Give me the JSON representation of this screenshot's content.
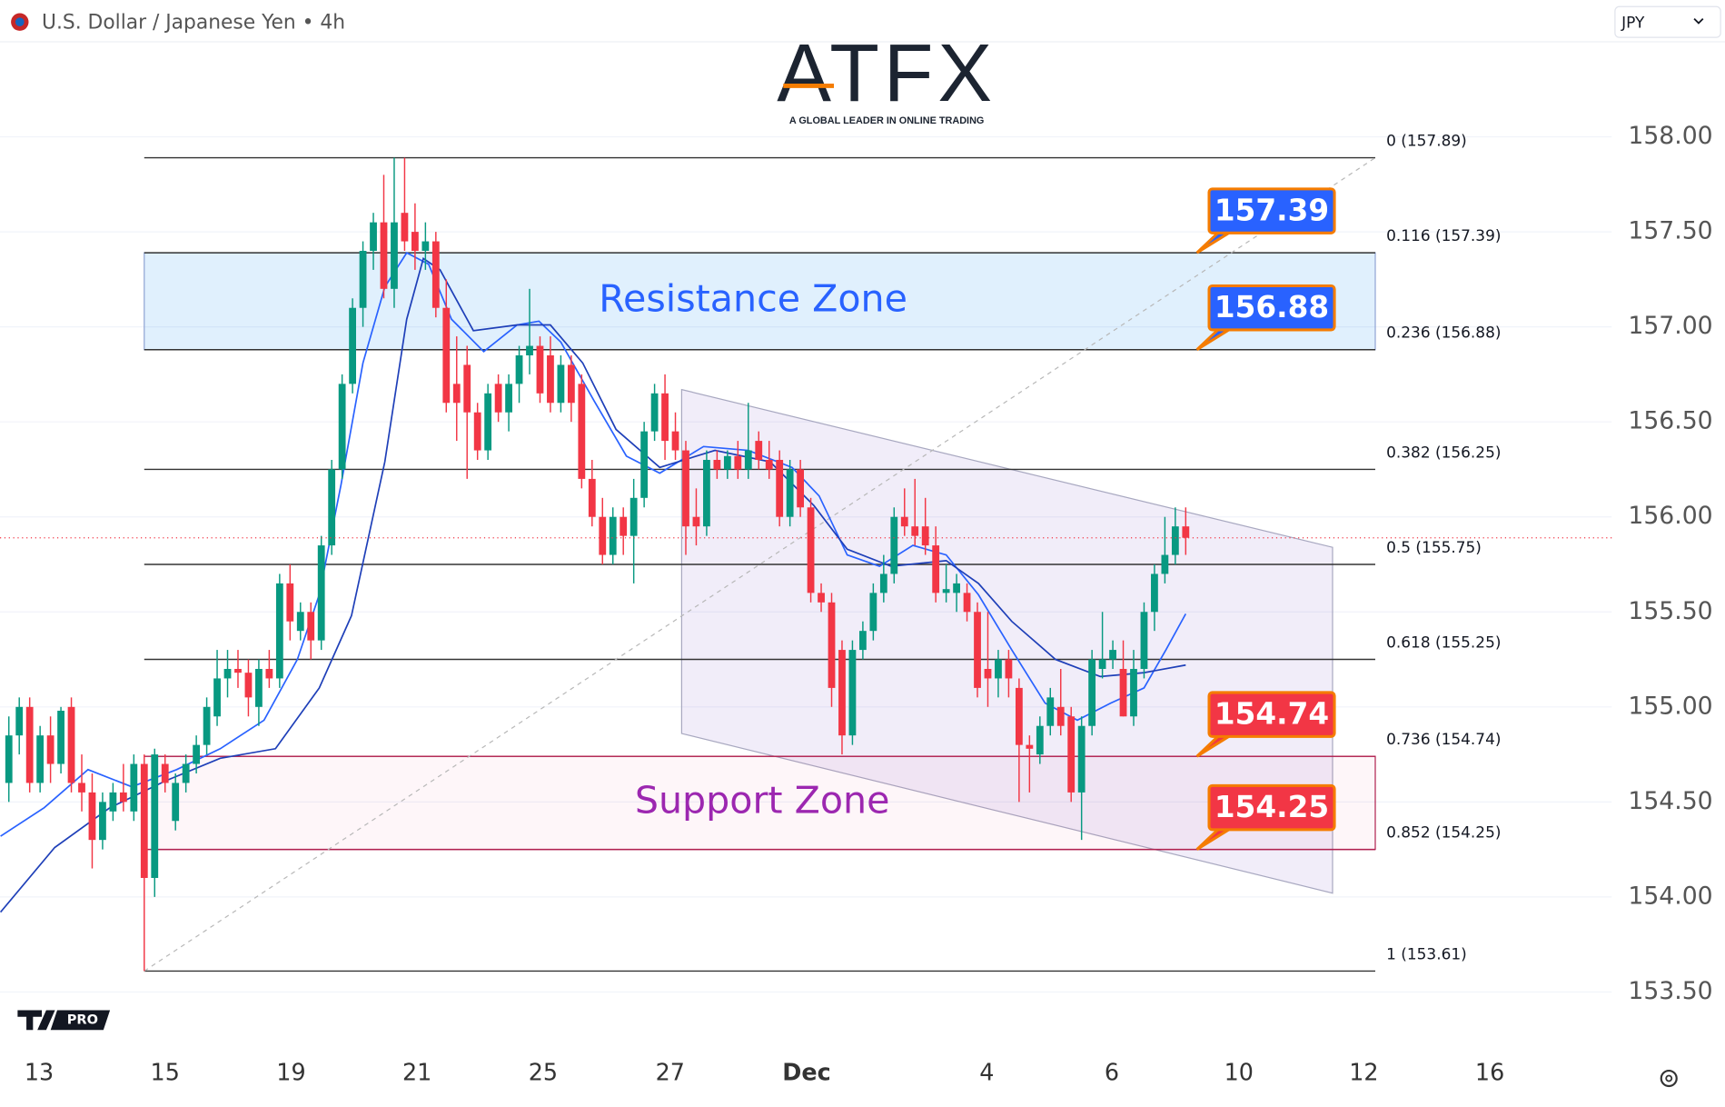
{
  "chart_data": {
    "type": "candlestick",
    "title": "U.S. Dollar / Japanese Yen • 4h",
    "currency": "JPY",
    "watermark": "ATFX",
    "watermark_tagline": "A GLOBAL LEADER IN ONLINE TRADING",
    "badge": "PRO",
    "up_color": "#089981",
    "down_color": "#f23645",
    "grid": true,
    "xlim": [
      -0.85,
      153.9
    ],
    "ylim": [
      153.19,
      158.5
    ],
    "yticks": [
      {
        "value": 153.5,
        "label": "153.50"
      },
      {
        "value": 154,
        "label": "154.00"
      },
      {
        "value": 154.5,
        "label": "154.50"
      },
      {
        "value": 155,
        "label": "155.00"
      },
      {
        "value": 155.5,
        "label": "155.50"
      },
      {
        "value": 156,
        "label": "156.00"
      },
      {
        "value": 156.5,
        "label": "156.50"
      },
      {
        "value": 157,
        "label": "157.00"
      },
      {
        "value": 157.5,
        "label": "157.50"
      },
      {
        "value": 158,
        "label": "158.00"
      }
    ],
    "xticks": [
      {
        "value": 2.9,
        "label": "13"
      },
      {
        "value": 15,
        "label": "15"
      },
      {
        "value": 27.1,
        "label": "19"
      },
      {
        "value": 39.2,
        "label": "21"
      },
      {
        "value": 51.3,
        "label": "25"
      },
      {
        "value": 63.5,
        "label": "27"
      },
      {
        "value": 76.6,
        "label": "Dec"
      },
      {
        "value": 93.9,
        "label": "4"
      },
      {
        "value": 105.9,
        "label": "6"
      },
      {
        "value": 118.1,
        "label": "10"
      },
      {
        "value": 130.1,
        "label": "12"
      },
      {
        "value": 142.2,
        "label": "16"
      }
    ],
    "x": [
      0,
      1,
      2,
      3,
      4,
      5,
      6,
      7,
      8,
      9,
      10,
      11,
      12,
      13,
      14,
      15,
      16,
      17,
      18,
      19,
      20,
      21,
      22,
      23,
      24,
      25,
      26,
      27,
      28,
      29,
      30,
      31,
      32,
      33,
      34,
      35,
      36,
      37,
      38,
      39,
      40,
      41,
      42,
      43,
      44,
      45,
      46,
      47,
      48,
      49,
      50,
      51,
      52,
      53,
      54,
      55,
      56,
      57,
      58,
      59,
      60,
      61,
      62,
      63,
      64,
      65,
      66,
      67,
      68,
      69,
      70,
      71,
      72,
      73,
      74,
      75,
      76,
      77,
      78,
      79,
      80,
      81,
      82,
      83,
      84,
      85,
      86,
      87,
      88,
      89,
      90,
      91,
      92,
      93,
      94,
      95,
      96,
      97,
      98,
      99,
      100,
      101,
      102,
      103,
      104,
      105,
      106,
      107,
      108,
      109,
      110,
      111,
      112,
      113
    ],
    "open": [
      154.6,
      154.85,
      155.0,
      154.6,
      154.85,
      154.7,
      155.0,
      154.6,
      154.55,
      154.3,
      154.45,
      154.55,
      154.45,
      154.7,
      154.1,
      154.7,
      154.4,
      154.6,
      154.7,
      154.8,
      154.95,
      155.15,
      155.2,
      155.18,
      155.0,
      155.2,
      155.15,
      155.65,
      155.4,
      155.5,
      155.35,
      155.85,
      156.25,
      156.7,
      157.1,
      157.4,
      157.55,
      157.2,
      157.6,
      157.5,
      157.4,
      157.45,
      157.1,
      156.7,
      156.8,
      156.55,
      156.35,
      156.7,
      156.55,
      156.7,
      156.85,
      156.9,
      156.85,
      156.6,
      156.8,
      156.7,
      156.2,
      156.0,
      155.8,
      156.0,
      155.9,
      156.1,
      156.45,
      156.65,
      156.45,
      156.35,
      156.0,
      155.95,
      156.3,
      156.25,
      156.32,
      156.25,
      156.4,
      156.3,
      156.3,
      156.0,
      156.25,
      156.05,
      155.6,
      155.55,
      155.3,
      154.85,
      155.3,
      155.4,
      155.6,
      155.7,
      156.0,
      155.95,
      155.95,
      155.85,
      155.6,
      155.6,
      155.6,
      155.5,
      155.2,
      155.15,
      155.25,
      155.1,
      154.8,
      154.75,
      154.9,
      155.0,
      154.95,
      154.55,
      154.9,
      155.2,
      155.25,
      155.2,
      154.95,
      155.2,
      155.5,
      155.7,
      155.8,
      155.95
    ],
    "high": [
      154.95,
      155.05,
      155.05,
      154.9,
      154.95,
      155.0,
      155.05,
      154.75,
      154.65,
      154.55,
      154.6,
      154.7,
      154.75,
      154.75,
      154.78,
      154.75,
      154.65,
      154.75,
      154.85,
      155.05,
      155.3,
      155.3,
      155.3,
      155.25,
      155.25,
      155.3,
      155.7,
      155.75,
      155.55,
      155.55,
      155.9,
      156.3,
      156.75,
      157.15,
      157.45,
      157.6,
      157.8,
      157.89,
      157.89,
      157.65,
      157.55,
      157.5,
      157.25,
      156.95,
      156.9,
      156.6,
      156.7,
      156.75,
      156.75,
      156.9,
      157.2,
      156.95,
      156.95,
      156.85,
      156.85,
      156.75,
      156.3,
      156.1,
      156.05,
      156.05,
      156.2,
      156.5,
      156.7,
      156.75,
      156.55,
      156.4,
      156.15,
      156.35,
      156.35,
      156.35,
      156.4,
      156.6,
      156.45,
      156.4,
      156.35,
      156.3,
      156.3,
      156.1,
      155.65,
      155.6,
      155.35,
      155.35,
      155.45,
      155.65,
      155.8,
      156.05,
      156.15,
      156.2,
      156.1,
      155.95,
      155.75,
      155.7,
      155.65,
      155.55,
      155.5,
      155.3,
      155.3,
      155.15,
      154.85,
      154.95,
      155.1,
      155.2,
      155.0,
      154.95,
      155.3,
      155.5,
      155.35,
      155.35,
      155.3,
      155.55,
      155.75,
      156.0,
      156.05,
      156.05
    ],
    "low": [
      154.5,
      154.75,
      154.55,
      154.55,
      154.6,
      154.65,
      154.55,
      154.45,
      154.15,
      154.25,
      154.4,
      154.45,
      154.4,
      153.61,
      154.0,
      154.55,
      154.35,
      154.55,
      154.65,
      154.75,
      154.9,
      155.05,
      155.1,
      154.95,
      154.9,
      155.1,
      155.1,
      155.35,
      155.35,
      155.25,
      155.3,
      155.8,
      156.2,
      156.65,
      157.0,
      157.3,
      157.15,
      157.1,
      157.4,
      157.3,
      157.3,
      157.05,
      156.55,
      156.4,
      156.2,
      156.3,
      156.3,
      156.5,
      156.45,
      156.6,
      156.75,
      156.6,
      156.55,
      156.55,
      156.5,
      156.15,
      155.95,
      155.75,
      155.75,
      155.8,
      155.65,
      156.05,
      156.4,
      156.3,
      156.3,
      155.8,
      155.85,
      155.9,
      156.2,
      156.2,
      156.2,
      156.2,
      156.25,
      156.2,
      155.95,
      155.95,
      156.0,
      155.55,
      155.5,
      155.0,
      154.75,
      154.8,
      155.25,
      155.35,
      155.55,
      155.65,
      155.9,
      155.85,
      155.8,
      155.55,
      155.55,
      155.5,
      155.45,
      155.05,
      155.0,
      155.05,
      155.05,
      154.5,
      154.55,
      154.7,
      154.85,
      154.85,
      154.5,
      154.3,
      154.85,
      155.15,
      155.2,
      154.95,
      154.9,
      155.15,
      155.4,
      155.65,
      155.75,
      155.8
    ],
    "close": [
      154.85,
      155.0,
      154.6,
      154.85,
      154.7,
      154.98,
      154.6,
      154.55,
      154.3,
      154.5,
      154.55,
      154.5,
      154.7,
      154.1,
      154.75,
      154.6,
      154.6,
      154.7,
      154.8,
      155.0,
      155.15,
      155.2,
      155.18,
      155.05,
      155.2,
      155.15,
      155.65,
      155.45,
      155.5,
      155.35,
      155.85,
      156.25,
      156.7,
      157.1,
      157.4,
      157.55,
      157.2,
      157.55,
      157.45,
      157.4,
      157.45,
      157.1,
      156.6,
      156.6,
      156.55,
      156.35,
      156.65,
      156.55,
      156.7,
      156.85,
      156.9,
      156.65,
      156.6,
      156.8,
      156.6,
      156.2,
      156.0,
      155.8,
      156.0,
      155.9,
      156.1,
      156.45,
      156.65,
      156.4,
      156.35,
      155.95,
      155.95,
      156.3,
      156.25,
      156.32,
      156.25,
      156.35,
      156.3,
      156.25,
      156.0,
      156.25,
      156.05,
      155.6,
      155.55,
      155.1,
      154.85,
      155.3,
      155.4,
      155.6,
      155.7,
      156.0,
      155.95,
      155.9,
      155.85,
      155.6,
      155.62,
      155.65,
      155.5,
      155.1,
      155.15,
      155.25,
      155.15,
      154.8,
      154.78,
      154.9,
      155.05,
      154.9,
      154.55,
      154.9,
      155.25,
      155.25,
      155.3,
      154.95,
      155.2,
      155.5,
      155.7,
      155.8,
      155.95,
      155.89
    ],
    "moving_averages": [
      {
        "color": "#2962ff",
        "x": [
          -0.8,
          3.4,
          7.6,
          11.8,
          16.1,
          20.3,
          24.5,
          27.7,
          29.8,
          31.9,
          34.0,
          36.1,
          38.2,
          40.3,
          42.5,
          45.6,
          48.8,
          50.9,
          53.0,
          56.2,
          59.3,
          62.5,
          66.7,
          71.0,
          75.2,
          77.8,
          80.5,
          83.6,
          86.8,
          90.0,
          93.1,
          96.3,
          99.5,
          102.6,
          105.8,
          109.0,
          111.1,
          113.0
        ],
        "values": [
          154.32,
          154.47,
          154.67,
          154.58,
          154.67,
          154.78,
          154.93,
          155.25,
          155.59,
          156.17,
          156.81,
          157.21,
          157.39,
          157.33,
          157.04,
          156.87,
          157.01,
          157.03,
          156.92,
          156.61,
          156.32,
          156.23,
          156.37,
          156.35,
          156.26,
          156.11,
          155.8,
          155.74,
          155.85,
          155.8,
          155.59,
          155.3,
          155.02,
          154.93,
          155.02,
          155.1,
          155.3,
          155.49
        ]
      },
      {
        "color": "#1e3fb8",
        "x": [
          -0.8,
          4.4,
          9.7,
          15.0,
          20.3,
          25.6,
          29.8,
          32.9,
          36.1,
          38.2,
          39.8,
          41.4,
          44.6,
          48.8,
          52.0,
          55.1,
          58.3,
          62.5,
          67.8,
          73.1,
          77.3,
          80.5,
          84.7,
          90.0,
          93.1,
          96.3,
          100.5,
          104.8,
          109.0,
          113.0
        ],
        "values": [
          153.92,
          154.26,
          154.47,
          154.61,
          154.73,
          154.78,
          155.1,
          155.48,
          156.29,
          157.04,
          157.36,
          157.3,
          156.98,
          157.01,
          157.01,
          156.81,
          156.46,
          156.26,
          156.35,
          156.29,
          156.06,
          155.83,
          155.74,
          155.77,
          155.65,
          155.45,
          155.25,
          155.16,
          155.18,
          155.22
        ]
      }
    ],
    "fib_x": [
      13.0,
      131.2
    ],
    "fib_levels": [
      {
        "label": "0 (157.89)",
        "value": 157.89,
        "color": "#333333"
      },
      {
        "label": "0.116 (157.39)",
        "value": 157.39,
        "color": "#333333"
      },
      {
        "label": "0.236 (156.88)",
        "value": 156.88,
        "color": "#333333"
      },
      {
        "label": "0.382 (156.25)",
        "value": 156.25,
        "color": "#333333"
      },
      {
        "label": "0.5 (155.75)",
        "value": 155.75,
        "color": "#333333"
      },
      {
        "label": "0.618 (155.25)",
        "value": 155.25,
        "color": "#333333"
      },
      {
        "label": "0.736 (154.74)",
        "value": 154.74,
        "color": "#b0204f"
      },
      {
        "label": "0.852 (154.25)",
        "value": 154.25,
        "color": "#b0204f"
      },
      {
        "label": "1 (153.61)",
        "value": 153.61,
        "color": "#333333"
      }
    ],
    "zones": [
      {
        "label": "Resistance Zone",
        "range": [
          156.88,
          157.39
        ],
        "x": [
          13.0,
          131.2
        ],
        "color": "#2962ff"
      },
      {
        "label": "Support Zone",
        "range": [
          154.25,
          154.74
        ],
        "x": [
          13.9,
          131.2
        ],
        "color": "#9c27b0"
      }
    ],
    "channel": {
      "x": [
        64.6,
        127.1
      ],
      "upper": [
        156.67,
        155.84
      ],
      "lower": [
        154.86,
        154.02
      ]
    },
    "callouts": [
      {
        "value": 157.39,
        "color": "#2962ff"
      },
      {
        "value": 156.88,
        "color": "#2962ff"
      },
      {
        "value": 154.74,
        "color": "#f23645"
      },
      {
        "value": 154.25,
        "color": "#f23645"
      }
    ]
  }
}
